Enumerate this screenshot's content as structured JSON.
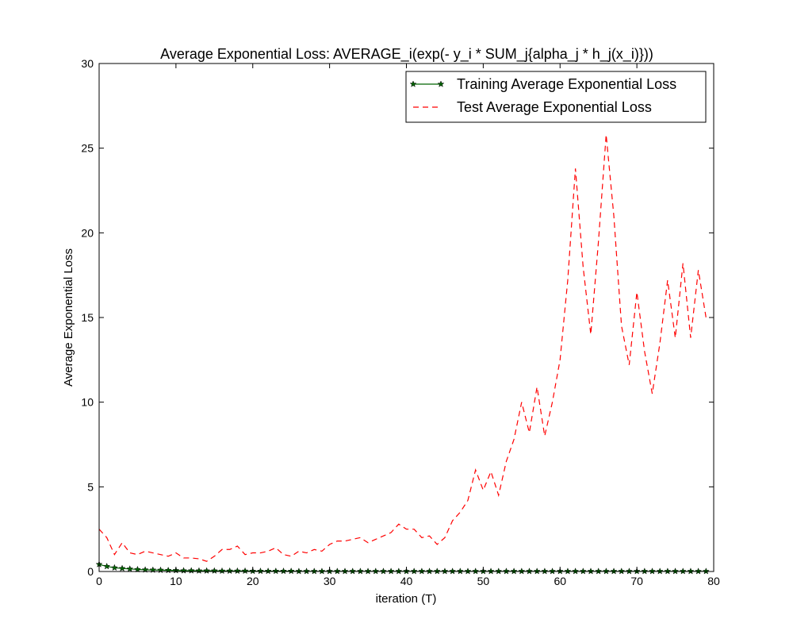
{
  "chart_data": {
    "type": "line",
    "title": "Average Exponential Loss: AVERAGE_i(exp(- y_i * SUM_j{alpha_j * h_j(x_i)}))",
    "xlabel": "iteration (T)",
    "ylabel": "Average Exponential Loss",
    "xlim": [
      0,
      80
    ],
    "ylim": [
      0,
      30
    ],
    "xticks": [
      0,
      10,
      20,
      30,
      40,
      50,
      60,
      70,
      80
    ],
    "yticks": [
      0,
      5,
      10,
      15,
      20,
      25,
      30
    ],
    "grid": false,
    "legend_position": "top-right",
    "series": [
      {
        "name": "Training Average Exponential Loss",
        "color": "#006400",
        "style": "solid",
        "marker": "star",
        "x": [
          0,
          1,
          2,
          3,
          4,
          5,
          6,
          7,
          8,
          9,
          10,
          11,
          12,
          13,
          14,
          15,
          16,
          17,
          18,
          19,
          20,
          21,
          22,
          23,
          24,
          25,
          26,
          27,
          28,
          29,
          30,
          31,
          32,
          33,
          34,
          35,
          36,
          37,
          38,
          39,
          40,
          41,
          42,
          43,
          44,
          45,
          46,
          47,
          48,
          49,
          50,
          51,
          52,
          53,
          54,
          55,
          56,
          57,
          58,
          59,
          60,
          61,
          62,
          63,
          64,
          65,
          66,
          67,
          68,
          69,
          70,
          71,
          72,
          73,
          74,
          75,
          76,
          77,
          78,
          79
        ],
        "y": [
          0.42,
          0.3,
          0.22,
          0.18,
          0.15,
          0.12,
          0.1,
          0.09,
          0.08,
          0.07,
          0.06,
          0.05,
          0.05,
          0.04,
          0.04,
          0.04,
          0.03,
          0.03,
          0.03,
          0.03,
          0.02,
          0.02,
          0.02,
          0.02,
          0.02,
          0.02,
          0.01,
          0.01,
          0.01,
          0.01,
          0.01,
          0.01,
          0.01,
          0.01,
          0.01,
          0.01,
          0.01,
          0.01,
          0.01,
          0.01,
          0.01,
          0.01,
          0.01,
          0.01,
          0.01,
          0.01,
          0.01,
          0.01,
          0.01,
          0.01,
          0.01,
          0.01,
          0.01,
          0.01,
          0.01,
          0.01,
          0.01,
          0.01,
          0.01,
          0.01,
          0.01,
          0.01,
          0.01,
          0.01,
          0.01,
          0.01,
          0.01,
          0.01,
          0.01,
          0.01,
          0.01,
          0.01,
          0.01,
          0.01,
          0.01,
          0.01,
          0.01,
          0.01,
          0.01,
          0.01
        ]
      },
      {
        "name": "Test Average Exponential Loss",
        "color": "#ff0000",
        "style": "dashed",
        "marker": "none",
        "x": [
          0,
          1,
          2,
          3,
          4,
          5,
          6,
          7,
          8,
          9,
          10,
          11,
          12,
          13,
          14,
          15,
          16,
          17,
          18,
          19,
          20,
          21,
          22,
          23,
          24,
          25,
          26,
          27,
          28,
          29,
          30,
          31,
          32,
          33,
          34,
          35,
          36,
          37,
          38,
          39,
          40,
          41,
          42,
          43,
          44,
          45,
          46,
          47,
          48,
          49,
          50,
          51,
          52,
          53,
          54,
          55,
          56,
          57,
          58,
          59,
          60,
          61,
          62,
          63,
          64,
          65,
          66,
          67,
          68,
          69,
          70,
          71,
          72,
          73,
          74,
          75,
          76,
          77,
          78,
          79
        ],
        "y": [
          2.5,
          2.0,
          1.0,
          1.7,
          1.1,
          1.0,
          1.2,
          1.1,
          1.0,
          0.9,
          1.1,
          0.8,
          0.8,
          0.75,
          0.6,
          0.9,
          1.3,
          1.3,
          1.5,
          1.0,
          1.1,
          1.1,
          1.2,
          1.4,
          1.0,
          0.9,
          1.2,
          1.1,
          1.3,
          1.2,
          1.6,
          1.8,
          1.8,
          1.9,
          2.0,
          1.7,
          1.9,
          2.1,
          2.3,
          2.8,
          2.5,
          2.5,
          2.0,
          2.1,
          1.6,
          2.0,
          3.0,
          3.5,
          4.2,
          6.0,
          4.8,
          5.9,
          4.5,
          6.5,
          7.8,
          10.0,
          8.2,
          10.9,
          8.0,
          10.0,
          12.5,
          17.2,
          23.8,
          18.0,
          14.0,
          19.5,
          25.8,
          21.0,
          14.5,
          12.2,
          16.5,
          13.0,
          10.5,
          13.5,
          17.2,
          13.8,
          18.2,
          13.8,
          17.8,
          15.0
        ]
      }
    ]
  }
}
